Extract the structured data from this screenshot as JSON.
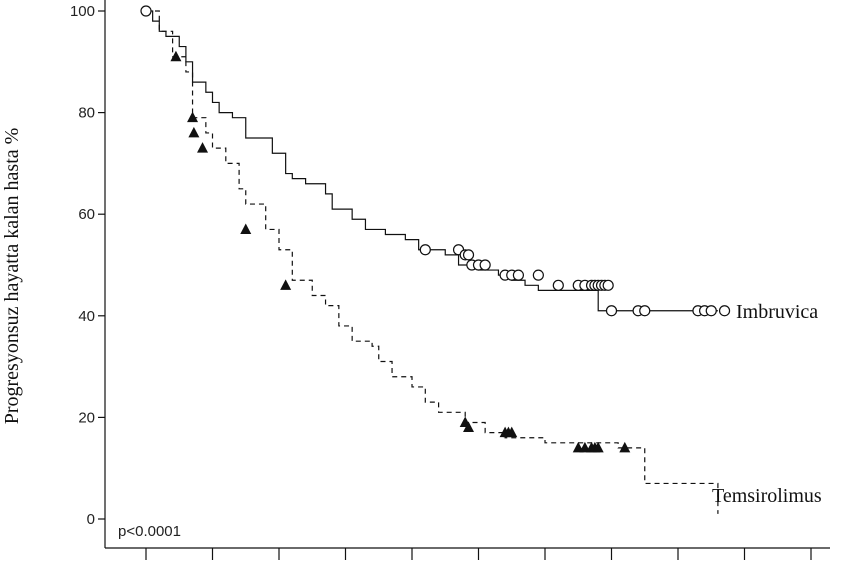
{
  "chart_data": {
    "type": "line",
    "ylabel": "Progresyonsuz hayatta kalan hasta %",
    "xlabel": "",
    "ylim": [
      0,
      100
    ],
    "y_ticks": [
      0,
      20,
      40,
      60,
      80,
      100
    ],
    "x_tick_count": 11,
    "annotation": "p<0.0001",
    "series": [
      {
        "name": "Imbruvica",
        "style": "solid",
        "marker": "open-circle",
        "color": "#111111",
        "x": [
          0,
          0.1,
          0.2,
          0.3,
          0.5,
          0.6,
          0.7,
          0.9,
          1.0,
          1.1,
          1.3,
          1.5,
          1.6,
          1.9,
          2.1,
          2.2,
          2.4,
          2.7,
          2.8,
          3.1,
          3.3,
          3.6,
          3.9,
          4.1,
          4.3,
          4.5,
          4.7,
          4.8,
          4.9,
          5.0,
          5.1,
          5.3,
          5.4,
          5.5,
          5.6,
          5.7,
          5.8,
          5.9,
          6.5,
          6.8,
          7.2,
          7.4,
          8.0,
          8.1,
          8.4,
          8.6
        ],
        "y": [
          100,
          98,
          96,
          95,
          93,
          90,
          86,
          84,
          82,
          80,
          79,
          75,
          75,
          72,
          68,
          67,
          66,
          64,
          61,
          59,
          57,
          56,
          55,
          53,
          53,
          52,
          50,
          50,
          50,
          49,
          49,
          48,
          48,
          47,
          47,
          46,
          46,
          45,
          45,
          41,
          41,
          41,
          41,
          41,
          41,
          41
        ],
        "censor_x": [
          0,
          4.2,
          4.7,
          4.8,
          4.85,
          4.9,
          5.0,
          5.1,
          5.4,
          5.5,
          5.6,
          5.9,
          6.2,
          6.5,
          6.6,
          6.7,
          6.75,
          6.8,
          6.85,
          6.9,
          6.95,
          7.0,
          7.4,
          7.5,
          8.3,
          8.4,
          8.5,
          8.7
        ],
        "censor_y": [
          100,
          53,
          53,
          52,
          52,
          50,
          50,
          50,
          48,
          48,
          48,
          48,
          46,
          46,
          46,
          46,
          46,
          46,
          46,
          46,
          46,
          41,
          41,
          41,
          41,
          41,
          41,
          41
        ]
      },
      {
        "name": "Temsirolimus",
        "style": "dashed",
        "marker": "filled-triangle",
        "color": "#111111",
        "x": [
          0,
          0.2,
          0.4,
          0.6,
          0.7,
          0.9,
          1.0,
          1.2,
          1.4,
          1.5,
          1.8,
          2.0,
          2.2,
          2.5,
          2.7,
          2.9,
          3.1,
          3.4,
          3.5,
          3.7,
          4.0,
          4.2,
          4.4,
          4.8,
          5.1,
          5.4,
          5.7,
          6.0,
          7.1,
          7.5,
          8.5,
          8.6
        ],
        "y": [
          100,
          96,
          91,
          88,
          79,
          76,
          73,
          70,
          65,
          62,
          57,
          53,
          47,
          44,
          42,
          38,
          35,
          34,
          31,
          28,
          26,
          23,
          21,
          19,
          17,
          16,
          16,
          15,
          14,
          7,
          7,
          1
        ],
        "censor_x": [
          0.45,
          0.7,
          0.72,
          0.85,
          1.5,
          2.1,
          4.8,
          4.85,
          5.4,
          5.45,
          5.5,
          6.5,
          6.6,
          6.7,
          6.75,
          6.8,
          7.2
        ],
        "censor_y": [
          91,
          79,
          76,
          73,
          57,
          46,
          19,
          18,
          17,
          17,
          17,
          14,
          14,
          14,
          14,
          14,
          14
        ]
      }
    ]
  }
}
